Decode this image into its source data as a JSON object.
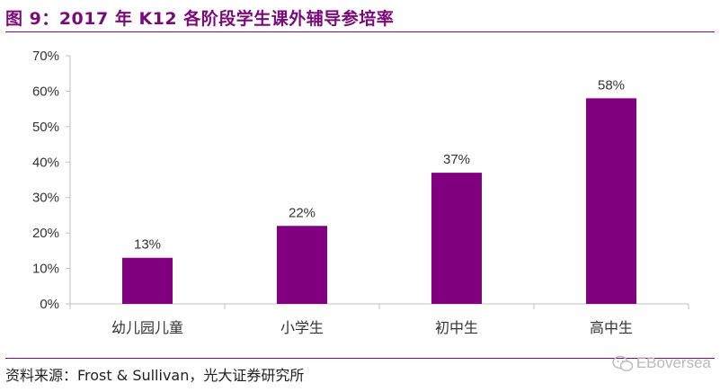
{
  "title": "图 9：2017 年 K12 各阶段学生课外辅导参培率",
  "source": "资料来源：Frost & Sullivan，光大证券研究所",
  "watermark": "EBoversea",
  "colors": {
    "bar": "#800080",
    "title": "#7a0a7a",
    "axis": "#bfbfbf",
    "text": "#333333"
  },
  "chart_data": {
    "type": "bar",
    "categories": [
      "幼儿园儿童",
      "小学生",
      "初中生",
      "高中生"
    ],
    "values": [
      13,
      22,
      37,
      58
    ],
    "data_labels": [
      "13%",
      "22%",
      "37%",
      "58%"
    ],
    "ylim": [
      0,
      70
    ],
    "yticks": [
      0,
      10,
      20,
      30,
      40,
      50,
      60,
      70
    ],
    "ytick_labels": [
      "0%",
      "10%",
      "20%",
      "30%",
      "40%",
      "50%",
      "60%",
      "70%"
    ],
    "grid": false,
    "legend": "none"
  }
}
